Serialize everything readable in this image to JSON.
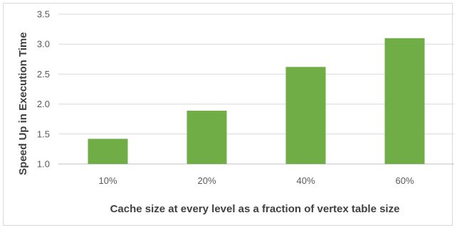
{
  "chart_data": {
    "type": "bar",
    "categories": [
      "10%",
      "20%",
      "40%",
      "60%"
    ],
    "series": [
      {
        "values": [
          1.42,
          1.89,
          2.62,
          3.1
        ]
      }
    ],
    "title": "",
    "xlabel": "Cache size at every level as a fraction of vertex table size",
    "ylabel": "Speed Up in Execution Time",
    "ylim": [
      1.0,
      3.5
    ],
    "yticks": [
      "1.0",
      "1.5",
      "2.0",
      "2.5",
      "3.0",
      "3.5"
    ],
    "grid": true,
    "legend": "none",
    "colors": {
      "bar": "#70AD47",
      "grid": "#d9d9d9",
      "axis": "#bfbfbf"
    }
  }
}
